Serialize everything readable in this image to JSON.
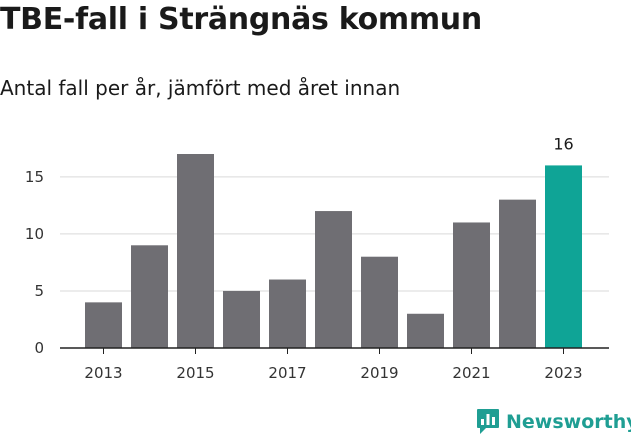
{
  "title": "TBE-fall i Strängnäs kommun",
  "subtitle": "Antal fall per år, jämfört med året innan",
  "brand": "Newsworthy",
  "colors": {
    "bar": "#6f6e73",
    "highlight": "#0fa496",
    "grid": "#d9d9d9",
    "axis": "#222222",
    "brand": "#1f9e93"
  },
  "chart_data": {
    "type": "bar",
    "categories": [
      "2013",
      "2014",
      "2015",
      "2016",
      "2017",
      "2018",
      "2019",
      "2020",
      "2021",
      "2022",
      "2023"
    ],
    "values": [
      4,
      9,
      17,
      5,
      6,
      12,
      8,
      3,
      11,
      13,
      16
    ],
    "x_tick_labels": [
      "2013",
      "2015",
      "2017",
      "2019",
      "2021",
      "2023"
    ],
    "y_ticks": [
      0,
      5,
      10,
      15
    ],
    "ylim": [
      0,
      17
    ],
    "highlight_category": "2023",
    "highlight_label": "16",
    "grid": true,
    "xlabel": "",
    "ylabel": ""
  }
}
